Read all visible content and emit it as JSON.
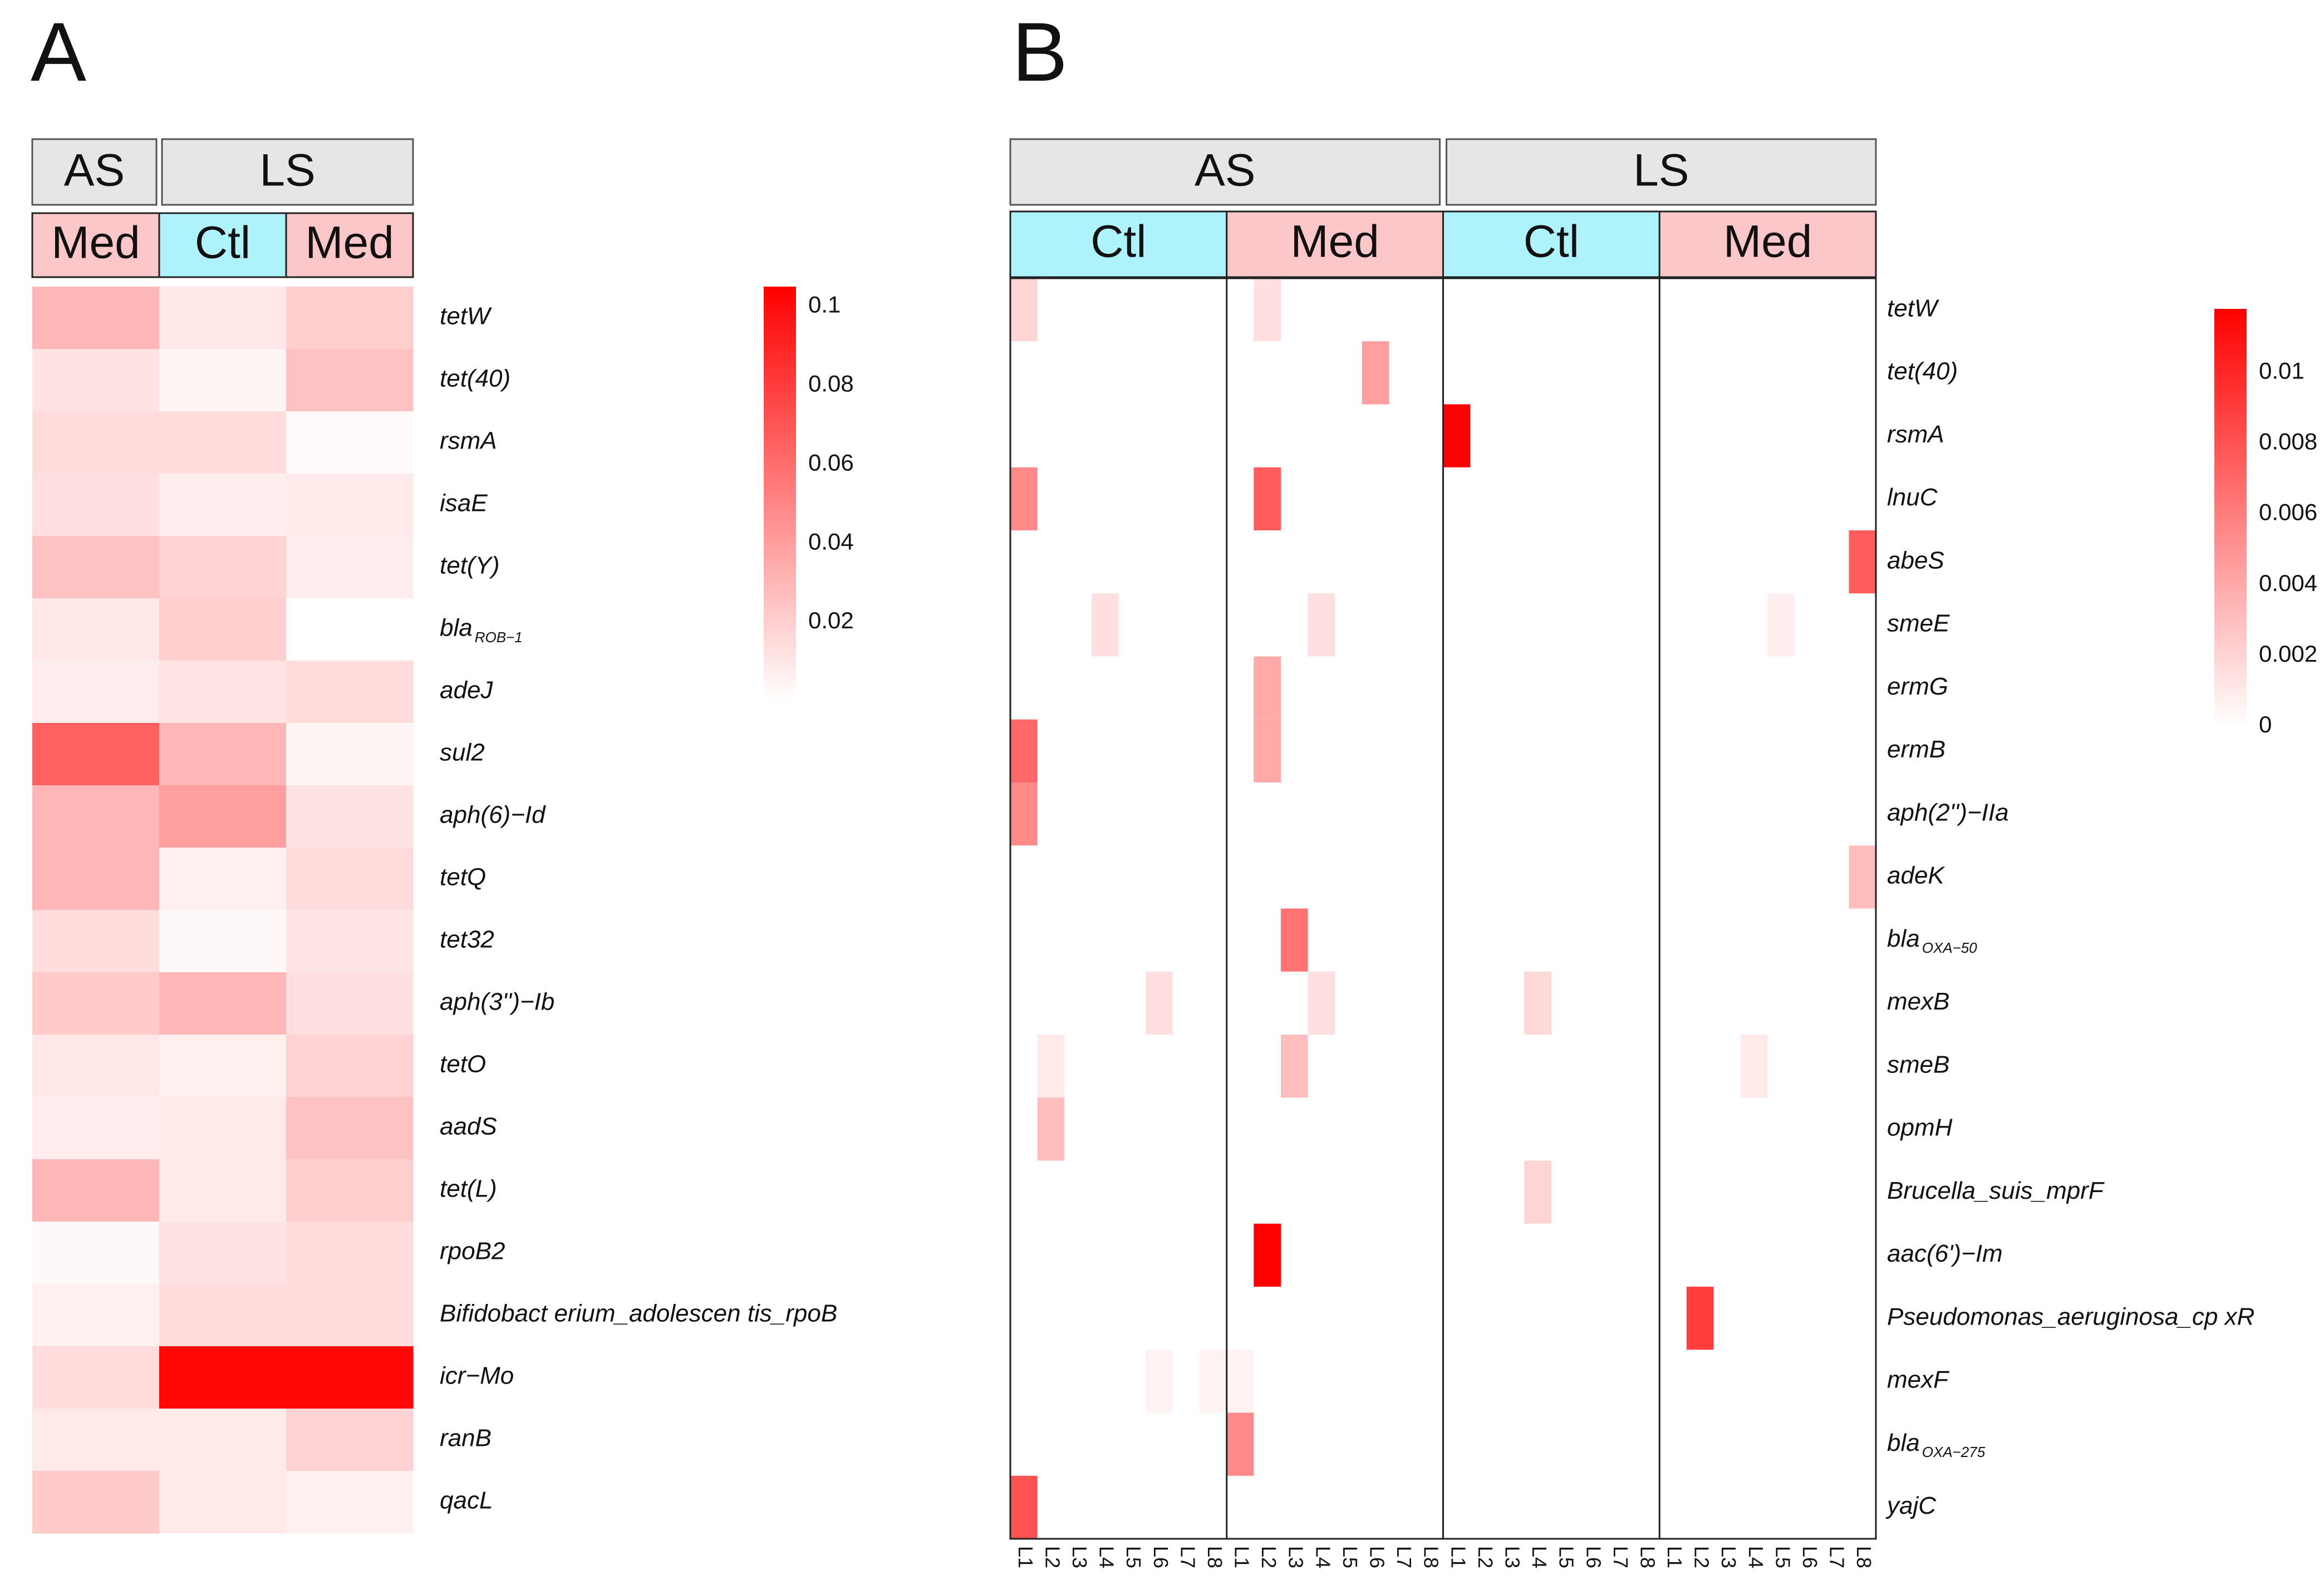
{
  "chart_data": [
    {
      "type": "heatmap",
      "panel": "A",
      "groups": [
        "AS",
        "LS"
      ],
      "columns": [
        "Med",
        "Ctl",
        "Med"
      ],
      "column_groups": [
        "AS",
        "LS",
        "LS"
      ],
      "rows": [
        {
          "main": "tetW",
          "sub": ""
        },
        {
          "main": "tet(40)",
          "sub": ""
        },
        {
          "main": "rsmA",
          "sub": ""
        },
        {
          "main": "isaE",
          "sub": ""
        },
        {
          "main": "tet(Y)",
          "sub": ""
        },
        {
          "main": "bla",
          "sub": "ROB−1"
        },
        {
          "main": "adeJ",
          "sub": ""
        },
        {
          "main": "sul2",
          "sub": ""
        },
        {
          "main": "aph(6)−Id",
          "sub": ""
        },
        {
          "main": "tetQ",
          "sub": ""
        },
        {
          "main": "tet32",
          "sub": ""
        },
        {
          "main": "aph(3'')−Ib",
          "sub": ""
        },
        {
          "main": "tetO",
          "sub": ""
        },
        {
          "main": "aadS",
          "sub": ""
        },
        {
          "main": "tet(L)",
          "sub": ""
        },
        {
          "main": "rpoB2",
          "sub": ""
        },
        {
          "main": "Bifidobact erium_adolescen tis_rpoB",
          "sub": ""
        },
        {
          "main": "icr−Mo",
          "sub": ""
        },
        {
          "main": "ranB",
          "sub": ""
        },
        {
          "main": "qacL",
          "sub": ""
        }
      ],
      "values": [
        [
          0.03,
          0.01,
          0.02
        ],
        [
          0.012,
          0.004,
          0.025
        ],
        [
          0.015,
          0.014,
          0.002
        ],
        [
          0.013,
          0.007,
          0.009
        ],
        [
          0.025,
          0.018,
          0.008
        ],
        [
          0.01,
          0.02,
          0.0
        ],
        [
          0.008,
          0.011,
          0.014
        ],
        [
          0.065,
          0.03,
          0.004
        ],
        [
          0.03,
          0.04,
          0.012
        ],
        [
          0.03,
          0.006,
          0.015
        ],
        [
          0.014,
          0.003,
          0.011
        ],
        [
          0.022,
          0.03,
          0.013
        ],
        [
          0.01,
          0.006,
          0.018
        ],
        [
          0.008,
          0.009,
          0.025
        ],
        [
          0.03,
          0.009,
          0.02
        ],
        [
          0.003,
          0.012,
          0.014
        ],
        [
          0.006,
          0.014,
          0.014
        ],
        [
          0.014,
          0.102,
          0.102
        ],
        [
          0.009,
          0.009,
          0.018
        ],
        [
          0.022,
          0.009,
          0.006
        ]
      ],
      "legend": {
        "ticks": [
          "0.1",
          "0.08",
          "0.06",
          "0.04",
          "0.02"
        ],
        "tick_values": [
          0.1,
          0.08,
          0.06,
          0.04,
          0.02
        ],
        "min": 0,
        "max": 0.105
      }
    },
    {
      "type": "heatmap",
      "panel": "B",
      "groups": [
        "AS",
        "LS"
      ],
      "subgroups": [
        "Ctl",
        "Med",
        "Ctl",
        "Med"
      ],
      "lanes": [
        "L1",
        "L2",
        "L3",
        "L4",
        "L5",
        "L6",
        "L7",
        "L8"
      ],
      "rows": [
        {
          "main": "tetW",
          "sub": ""
        },
        {
          "main": "tet(40)",
          "sub": ""
        },
        {
          "main": "rsmA",
          "sub": ""
        },
        {
          "main": "lnuC",
          "sub": ""
        },
        {
          "main": "abeS",
          "sub": ""
        },
        {
          "main": "smeE",
          "sub": ""
        },
        {
          "main": "ermG",
          "sub": ""
        },
        {
          "main": "ermB",
          "sub": ""
        },
        {
          "main": "aph(2'')−IIa",
          "sub": ""
        },
        {
          "main": "adeK",
          "sub": ""
        },
        {
          "main": "bla",
          "sub": "OXA−50"
        },
        {
          "main": "mexB",
          "sub": ""
        },
        {
          "main": "smeB",
          "sub": ""
        },
        {
          "main": "opmH",
          "sub": ""
        },
        {
          "main": "Brucella_suis_mprF",
          "sub": ""
        },
        {
          "main": "aac(6')−Im",
          "sub": ""
        },
        {
          "main": "Pseudomonas_aeruginosa_cp xR",
          "sub": ""
        },
        {
          "main": "mexF",
          "sub": ""
        },
        {
          "main": "bla",
          "sub": "OXA−275"
        },
        {
          "main": "yajC",
          "sub": ""
        }
      ],
      "cells": [
        {
          "row": 0,
          "col": 0,
          "value": 0.002
        },
        {
          "row": 0,
          "col": 9,
          "value": 0.0015
        },
        {
          "row": 1,
          "col": 13,
          "value": 0.0045
        },
        {
          "row": 2,
          "col": 16,
          "value": 0.0118
        },
        {
          "row": 3,
          "col": 0,
          "value": 0.0055
        },
        {
          "row": 3,
          "col": 9,
          "value": 0.0075
        },
        {
          "row": 4,
          "col": 31,
          "value": 0.0075
        },
        {
          "row": 5,
          "col": 3,
          "value": 0.0015
        },
        {
          "row": 5,
          "col": 11,
          "value": 0.0015
        },
        {
          "row": 5,
          "col": 28,
          "value": 0.0008
        },
        {
          "row": 6,
          "col": 9,
          "value": 0.004
        },
        {
          "row": 7,
          "col": 0,
          "value": 0.007
        },
        {
          "row": 7,
          "col": 9,
          "value": 0.004
        },
        {
          "row": 8,
          "col": 0,
          "value": 0.0055
        },
        {
          "row": 9,
          "col": 31,
          "value": 0.003
        },
        {
          "row": 10,
          "col": 10,
          "value": 0.0065
        },
        {
          "row": 11,
          "col": 5,
          "value": 0.0015
        },
        {
          "row": 11,
          "col": 11,
          "value": 0.0015
        },
        {
          "row": 11,
          "col": 19,
          "value": 0.0018
        },
        {
          "row": 12,
          "col": 1,
          "value": 0.001
        },
        {
          "row": 12,
          "col": 10,
          "value": 0.003
        },
        {
          "row": 12,
          "col": 27,
          "value": 0.001
        },
        {
          "row": 13,
          "col": 1,
          "value": 0.003
        },
        {
          "row": 14,
          "col": 19,
          "value": 0.002
        },
        {
          "row": 15,
          "col": 9,
          "value": 0.0118
        },
        {
          "row": 16,
          "col": 25,
          "value": 0.009
        },
        {
          "row": 17,
          "col": 5,
          "value": 0.0006
        },
        {
          "row": 17,
          "col": 7,
          "value": 0.0006
        },
        {
          "row": 17,
          "col": 8,
          "value": 0.0006
        },
        {
          "row": 18,
          "col": 8,
          "value": 0.0055
        },
        {
          "row": 19,
          "col": 0,
          "value": 0.008
        }
      ],
      "legend": {
        "ticks": [
          "0.01",
          "0.008",
          "0.006",
          "0.004",
          "0.002",
          "0"
        ],
        "tick_values": [
          0.01,
          0.008,
          0.006,
          0.004,
          0.002,
          0
        ],
        "min": 0,
        "max": 0.0118
      }
    }
  ]
}
